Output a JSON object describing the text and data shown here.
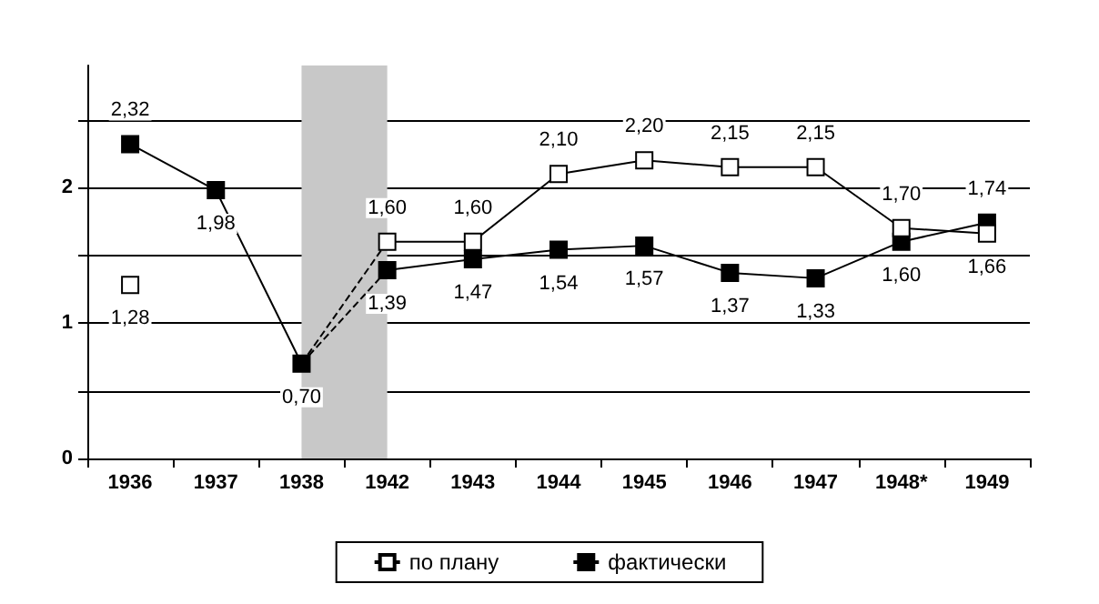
{
  "chart_data": {
    "type": "line",
    "categories": [
      "1936",
      "1937",
      "1938",
      "1942",
      "1943",
      "1944",
      "1945",
      "1946",
      "1947",
      "1948*",
      "1949"
    ],
    "series": [
      {
        "name": "по плану",
        "color": "#000000",
        "marker": "square",
        "values": [
          1.28,
          null,
          null,
          1.6,
          1.6,
          2.1,
          2.2,
          2.15,
          2.15,
          1.7,
          1.66
        ],
        "value_labels": [
          "1,28",
          null,
          null,
          "1,60",
          "1,60",
          "2,10",
          "2,20",
          "2,15",
          "2,15",
          "1,70",
          "1,66"
        ]
      },
      {
        "name": "фактически",
        "color": "#000000",
        "marker": "square",
        "values": [
          2.32,
          1.98,
          0.7,
          null,
          null,
          null,
          null,
          null,
          null,
          null,
          null
        ],
        "value_labels": [
          "2,32",
          "1,98",
          "0,70",
          null,
          null,
          null,
          null,
          null,
          null,
          null,
          null
        ]
      },
      {
        "color": "#000000",
        "marker": "square",
        "values": [
          null,
          null,
          null,
          1.39,
          1.47,
          1.54,
          1.57,
          1.37,
          1.33,
          1.6,
          1.74
        ],
        "value_labels": [
          null,
          null,
          null,
          "1,39",
          "1,47",
          "1,54",
          "1,57",
          "1,37",
          "1,33",
          "1,60",
          "1,74"
        ]
      },
      {
        "color": "#000000",
        "line_style": "dashed",
        "values": [
          null,
          null,
          0.7,
          1.6,
          null,
          null,
          null,
          null,
          null,
          null,
          null
        ]
      },
      {
        "color": "#000000",
        "line_style": "dashed",
        "values": [
          null,
          null,
          0.7,
          1.39,
          null,
          null,
          null,
          null,
          null,
          null,
          null
        ]
      }
    ],
    "ylim": [
      0,
      2.9
    ],
    "yticks": [
      0,
      {
        "value": 0.5,
        "label": null
      },
      1,
      {
        "value": 1.5,
        "label": null
      },
      2,
      {
        "value": 2.5,
        "label": null
      }
    ],
    "bands": [
      {
        "axis": "x",
        "from": "1938",
        "to": "1942",
        "color": "#c8c8c8"
      }
    ],
    "grid": "y",
    "legend": "bottom"
  }
}
